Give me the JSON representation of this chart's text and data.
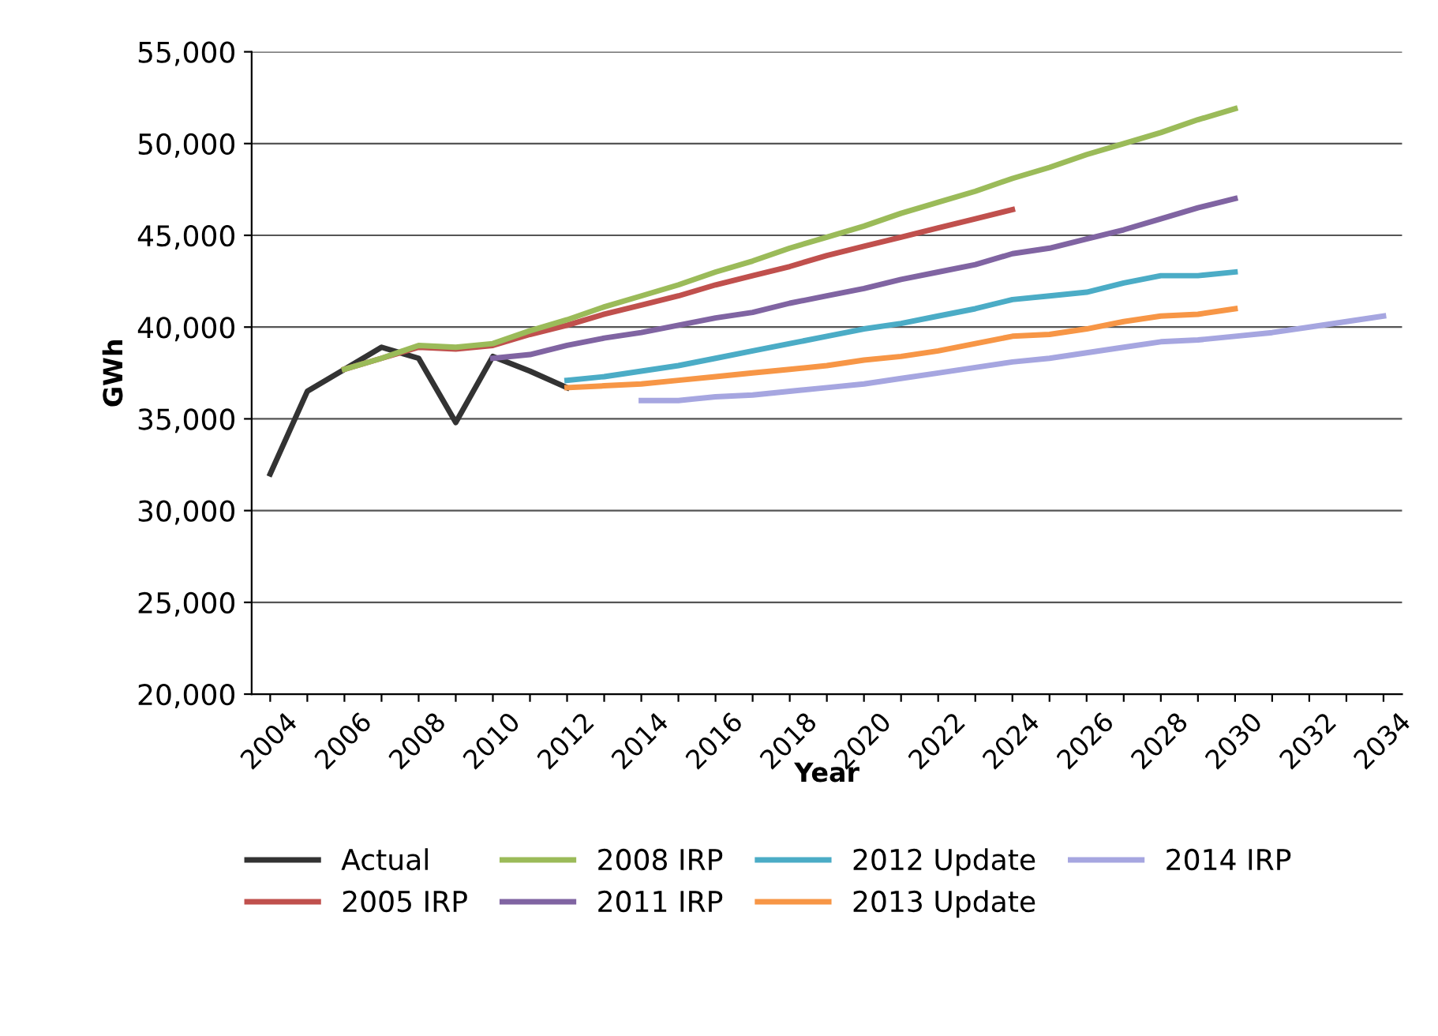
{
  "chart_data": {
    "type": "line",
    "xlabel": "Year",
    "ylabel": "GWh",
    "categories": [
      "2004",
      null,
      "2006",
      null,
      "2008",
      null,
      "2010",
      null,
      "2012",
      null,
      "2014",
      null,
      "2016",
      null,
      "2018",
      null,
      "2020",
      null,
      "2022",
      null,
      "2024",
      null,
      "2026",
      null,
      "2028",
      null,
      "2030",
      null,
      "2032",
      null,
      "2034"
    ],
    "ylim": [
      20000,
      55000
    ],
    "yticks": [
      {
        "value": 20000,
        "label": "20,000"
      },
      {
        "value": 25000,
        "label": "25,000"
      },
      {
        "value": 30000,
        "label": "30,000"
      },
      {
        "value": 35000,
        "label": "35,000"
      },
      {
        "value": 40000,
        "label": "40,000"
      },
      {
        "value": 45000,
        "label": "45,000"
      },
      {
        "value": 50000,
        "label": "50,000"
      },
      {
        "value": 55000,
        "label": "55,000"
      }
    ],
    "grid": "y",
    "legend": "bottom",
    "marker": "none",
    "line_style": "solid",
    "series": [
      {
        "name": "Actual",
        "color": "#333333",
        "values": [
          32000,
          36500,
          37700,
          38900,
          38300,
          34800,
          38400,
          37600,
          36700,
          null,
          null,
          null,
          null,
          null,
          null,
          null,
          null,
          null,
          null,
          null,
          null,
          null,
          null,
          null,
          null,
          null,
          null,
          null,
          null,
          null,
          null
        ]
      },
      {
        "name": "2005 IRP",
        "color": "#c0504d",
        "values": [
          null,
          null,
          37700,
          38300,
          38900,
          38800,
          39000,
          39600,
          40100,
          40700,
          41200,
          41700,
          42300,
          42800,
          43300,
          43900,
          44400,
          44900,
          45400,
          45900,
          46400,
          null,
          null,
          null,
          null,
          null,
          null,
          null,
          null,
          null,
          null
        ]
      },
      {
        "name": "2008 IRP",
        "color": "#9bbb59",
        "values": [
          null,
          null,
          37700,
          38300,
          39000,
          38900,
          39100,
          39800,
          40400,
          41100,
          41700,
          42300,
          43000,
          43600,
          44300,
          44900,
          45500,
          46200,
          46800,
          47400,
          48100,
          48700,
          49400,
          50000,
          50600,
          51300,
          51900,
          null,
          null,
          null,
          null
        ]
      },
      {
        "name": "2011 IRP",
        "color": "#8064a2",
        "values": [
          null,
          null,
          null,
          null,
          null,
          null,
          38300,
          38500,
          39000,
          39400,
          39700,
          40100,
          40500,
          40800,
          41300,
          41700,
          42100,
          42600,
          43000,
          43400,
          44000,
          44300,
          44800,
          45300,
          45900,
          46500,
          47000,
          null,
          null,
          null,
          null
        ]
      },
      {
        "name": "2012 Update",
        "color": "#4bacc6",
        "values": [
          null,
          null,
          null,
          null,
          null,
          null,
          null,
          null,
          37100,
          37300,
          37600,
          37900,
          38300,
          38700,
          39100,
          39500,
          39900,
          40200,
          40600,
          41000,
          41500,
          41700,
          41900,
          42400,
          42800,
          42800,
          43000,
          null,
          null,
          null,
          null
        ]
      },
      {
        "name": "2013 Update",
        "color": "#f79646",
        "values": [
          null,
          null,
          null,
          null,
          null,
          null,
          null,
          null,
          36700,
          36800,
          36900,
          37100,
          37300,
          37500,
          37700,
          37900,
          38200,
          38400,
          38700,
          39100,
          39500,
          39600,
          39900,
          40300,
          40600,
          40700,
          41000,
          null,
          null,
          null,
          null
        ]
      },
      {
        "name": "2014 IRP",
        "color": "#a6a6e0",
        "values": [
          null,
          null,
          null,
          null,
          null,
          null,
          null,
          null,
          null,
          null,
          36000,
          36000,
          36200,
          36300,
          36500,
          36700,
          36900,
          37200,
          37500,
          37800,
          38100,
          38300,
          38600,
          38900,
          39200,
          39300,
          39500,
          39700,
          40000,
          40300,
          40600
        ]
      }
    ]
  }
}
